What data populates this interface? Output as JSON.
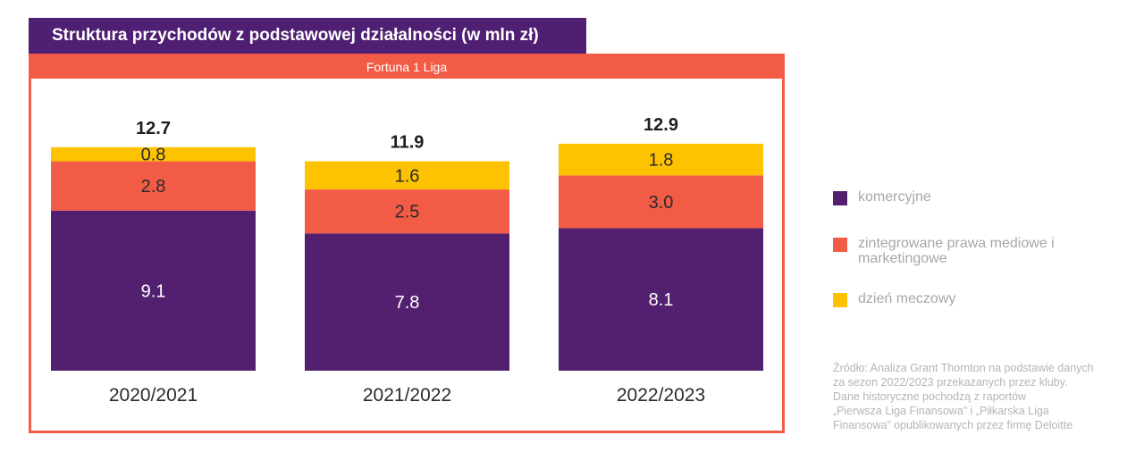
{
  "title": "Struktura przychodów z podstawowej działalności (w mln zł)",
  "subtitle": "Fortuna 1 Liga",
  "colors": {
    "title_bg": "#4f1f73",
    "frame": "#f25c47",
    "komercyjne": "#52206f",
    "media": "#f25c47",
    "matchday": "#fdc300"
  },
  "legend": [
    {
      "label": "komercyjne",
      "color": "#52206f"
    },
    {
      "label": "zintegrowane prawa mediowe i marketingowe",
      "color": "#f25c47"
    },
    {
      "label": "dzień meczowy",
      "color": "#fdc300"
    }
  ],
  "source_lines": [
    "Źródło: Analiza Grant Thornton na podstawie danych",
    "za sezon 2022/2023 przekazanych przez kluby.",
    "Dane historyczne pochodzą z raportów",
    "„Pierwsza Liga Finansowa” i „Piłkarska Liga",
    "Finansowa” opublikowanych przez firmę Deloitte"
  ],
  "chart_data": {
    "type": "bar",
    "stacked": true,
    "categories": [
      "2020/2021",
      "2021/2022",
      "2022/2023"
    ],
    "series": [
      {
        "name": "komercyjne",
        "values": [
          9.1,
          7.8,
          8.1
        ],
        "labels": [
          "9.1",
          "7.8",
          "8.1"
        ],
        "color": "#52206f"
      },
      {
        "name": "zintegrowane prawa mediowe i marketingowe",
        "values": [
          2.8,
          2.5,
          3.0
        ],
        "labels": [
          "2.8",
          "2.5",
          "3.0"
        ],
        "color": "#f25c47"
      },
      {
        "name": "dzień meczowy",
        "values": [
          0.8,
          1.6,
          1.8
        ],
        "labels": [
          "0.8",
          "1.6",
          "1.8"
        ],
        "color": "#fdc300"
      }
    ],
    "totals": [
      12.7,
      11.9,
      12.9
    ],
    "total_labels": [
      "12.7",
      "11.9",
      "12.9"
    ],
    "title": "Struktura przychodów z podstawowej działalności (w mln zł)",
    "subtitle": "Fortuna 1 Liga",
    "legend_position": "right",
    "grid": false
  }
}
